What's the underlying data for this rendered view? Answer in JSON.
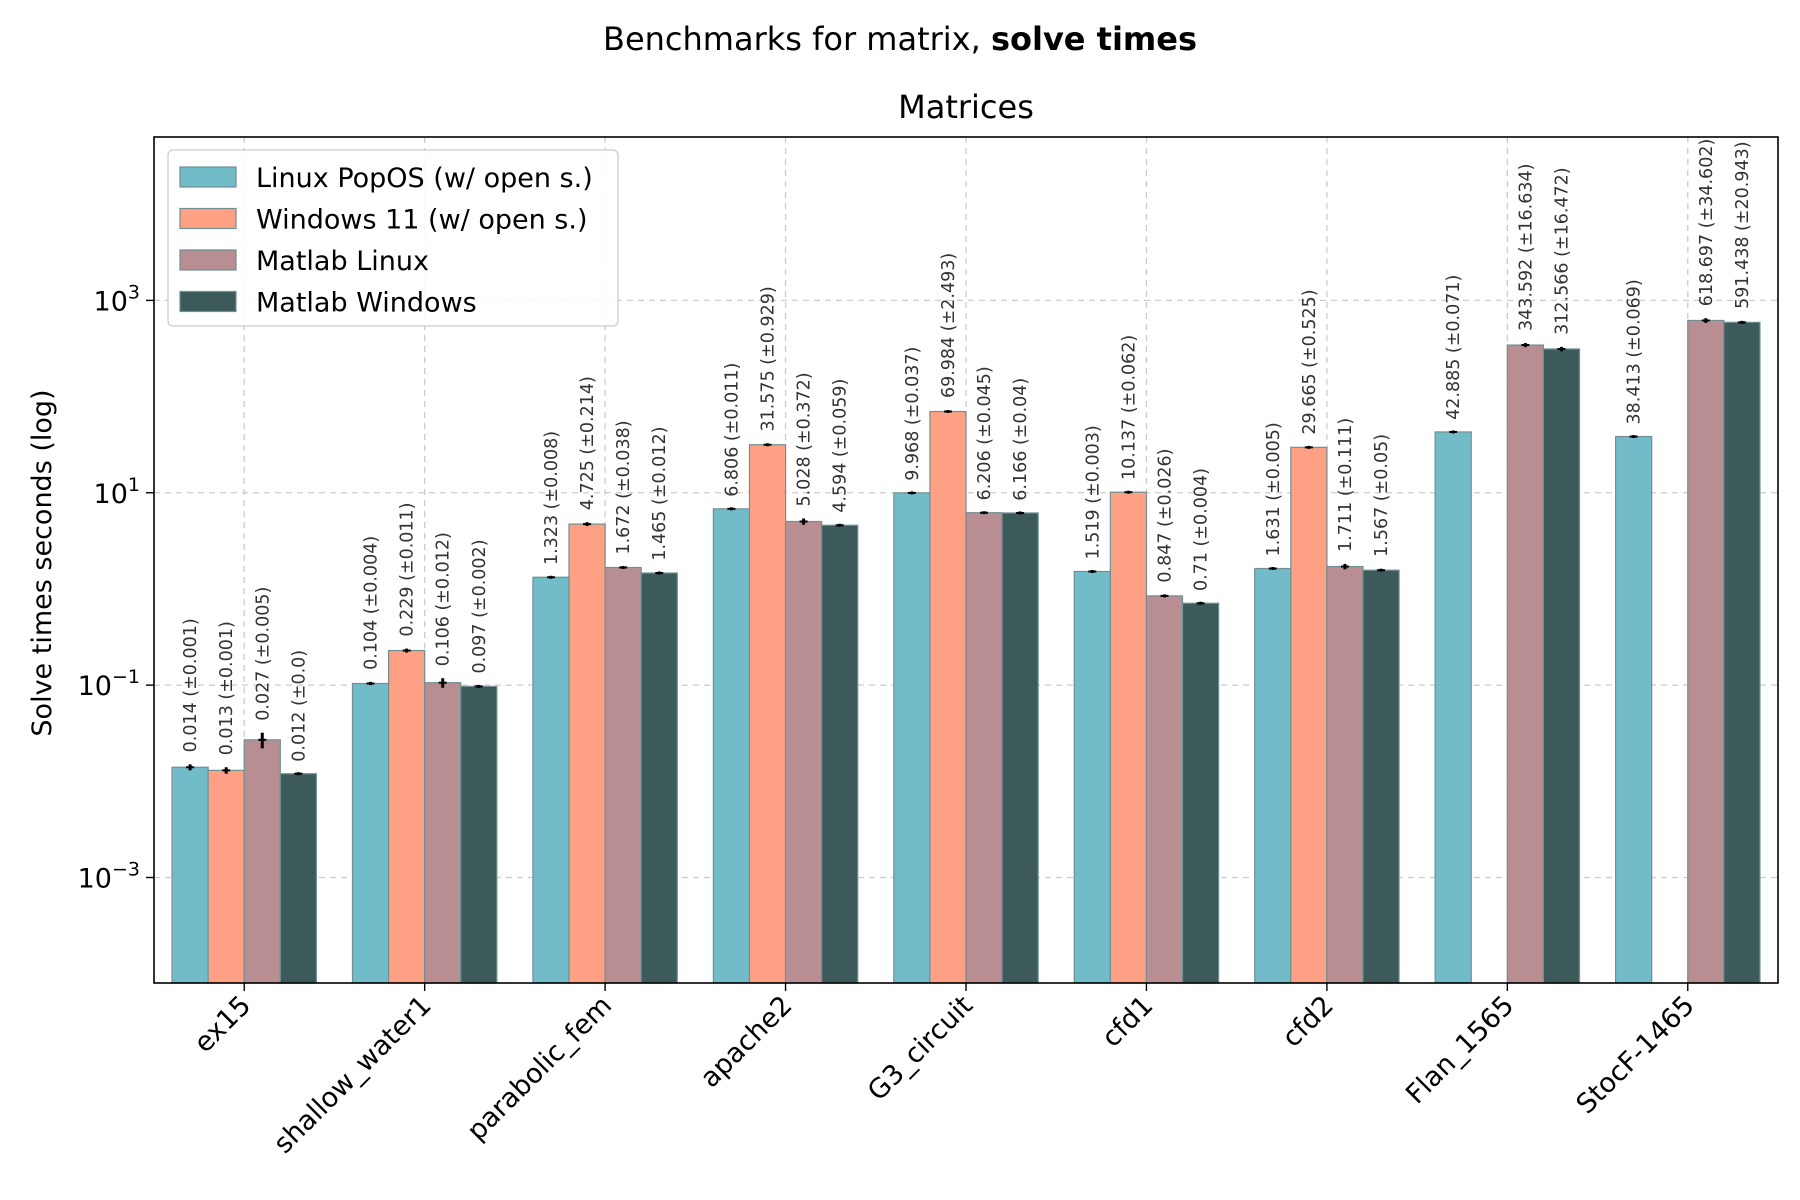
{
  "suptitle": {
    "prefix": "Benchmarks for matrix, ",
    "bold": "solve times"
  },
  "chart_data": {
    "type": "bar",
    "title": "Matrices",
    "xlabel": "",
    "ylabel": "Solve times seconds (log)",
    "yscale": "log",
    "ylim": [
      8e-05,
      50000
    ],
    "yticks": [
      {
        "value": 0.001,
        "base": "10",
        "exp": "−3"
      },
      {
        "value": 0.1,
        "base": "10",
        "exp": "−1"
      },
      {
        "value": 10,
        "base": "10",
        "exp": "1"
      },
      {
        "value": 1000,
        "base": "10",
        "exp": "3"
      }
    ],
    "grid": true,
    "legend_position": "top-left",
    "categories": [
      "ex15",
      "shallow_water1",
      "parabolic_fem",
      "apache2",
      "G3_circuit",
      "cfd1",
      "cfd2",
      "Flan_1565",
      "StocF-1465"
    ],
    "series": [
      {
        "name": "Linux PopOS (w/ open s.)",
        "color": "#72bcc9",
        "values": [
          0.014,
          0.104,
          1.323,
          6.806,
          9.968,
          1.519,
          1.631,
          42.885,
          38.413
        ],
        "errors": [
          0.001,
          0.004,
          0.008,
          0.011,
          0.037,
          0.003,
          0.005,
          0.071,
          0.069
        ],
        "labels": [
          "0.014 (±0.001)",
          "0.104 (±0.004)",
          "1.323 (±0.008)",
          "6.806 (±0.011)",
          "9.968 (±0.037)",
          "1.519 (±0.003)",
          "1.631 (±0.005)",
          "42.885 (±0.071)",
          "38.413 (±0.069)"
        ]
      },
      {
        "name": "Windows 11 (w/ open s.)",
        "color": "#fea083",
        "values": [
          0.013,
          0.229,
          4.725,
          31.575,
          69.984,
          10.137,
          29.665,
          null,
          null
        ],
        "errors": [
          0.001,
          0.011,
          0.214,
          0.929,
          2.493,
          0.062,
          0.525,
          null,
          null
        ],
        "labels": [
          "0.013 (±0.001)",
          "0.229 (±0.011)",
          "4.725 (±0.214)",
          "31.575 (±0.929)",
          "69.984 (±2.493)",
          "10.137 (±0.062)",
          "29.665 (±0.525)",
          null,
          null
        ]
      },
      {
        "name": "Matlab Linux",
        "color": "#b98e92",
        "values": [
          0.027,
          0.106,
          1.672,
          5.028,
          6.206,
          0.847,
          1.711,
          343.592,
          618.697
        ],
        "errors": [
          0.005,
          0.012,
          0.038,
          0.372,
          0.045,
          0.026,
          0.111,
          16.634,
          34.602
        ],
        "labels": [
          "0.027 (±0.005)",
          "0.106 (±0.012)",
          "1.672 (±0.038)",
          "5.028 (±0.372)",
          "6.206 (±0.045)",
          "0.847 (±0.026)",
          "1.711 (±0.111)",
          "343.592 (±16.634)",
          "618.697 (±34.602)"
        ]
      },
      {
        "name": "Matlab Windows",
        "color": "#3c5a5a",
        "values": [
          0.012,
          0.097,
          1.465,
          4.594,
          6.166,
          0.71,
          1.567,
          312.566,
          591.438
        ],
        "errors": [
          0.0,
          0.002,
          0.012,
          0.059,
          0.04,
          0.004,
          0.05,
          16.472,
          20.943
        ],
        "labels": [
          "0.012 (±0.0)",
          "0.097 (±0.002)",
          "1.465 (±0.012)",
          "4.594 (±0.059)",
          "6.166 (±0.04)",
          "0.71 (±0.004)",
          "1.567 (±0.05)",
          "312.566 (±16.472)",
          "591.438 (±20.943)"
        ]
      }
    ]
  }
}
